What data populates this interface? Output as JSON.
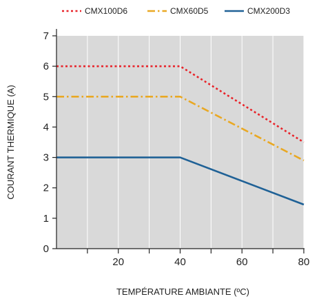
{
  "chart_data": {
    "type": "line",
    "title": "",
    "xlabel": "TEMPÉRATURE AMBIANTE (ºC)",
    "ylabel": "COURANT THERMIQUE (A)",
    "xlim": [
      0,
      80
    ],
    "ylim": [
      0,
      7
    ],
    "x_tick_labels": [
      "20",
      "40",
      "60",
      "80"
    ],
    "x_tick_values": [
      20,
      40,
      60,
      80
    ],
    "y_tick_labels": [
      "0",
      "1",
      "2",
      "3",
      "4",
      "5",
      "6",
      "7"
    ],
    "y_tick_values": [
      0,
      1,
      2,
      3,
      4,
      5,
      6,
      7
    ],
    "grid": "vertical",
    "legend_position": "top",
    "plot_background": "#d9d9d9",
    "series": [
      {
        "name": "CMX100D6",
        "color": "#e8242a",
        "style": "dotted",
        "x": [
          0,
          40,
          80
        ],
        "y": [
          6.0,
          6.0,
          3.5
        ]
      },
      {
        "name": "CMX60D5",
        "color": "#e9a823",
        "style": "dash-dot",
        "x": [
          0,
          40,
          80
        ],
        "y": [
          5.0,
          5.0,
          2.9
        ]
      },
      {
        "name": "CMX200D3",
        "color": "#1f6196",
        "style": "solid",
        "x": [
          0,
          40,
          80
        ],
        "y": [
          3.0,
          3.0,
          1.45
        ]
      }
    ]
  }
}
